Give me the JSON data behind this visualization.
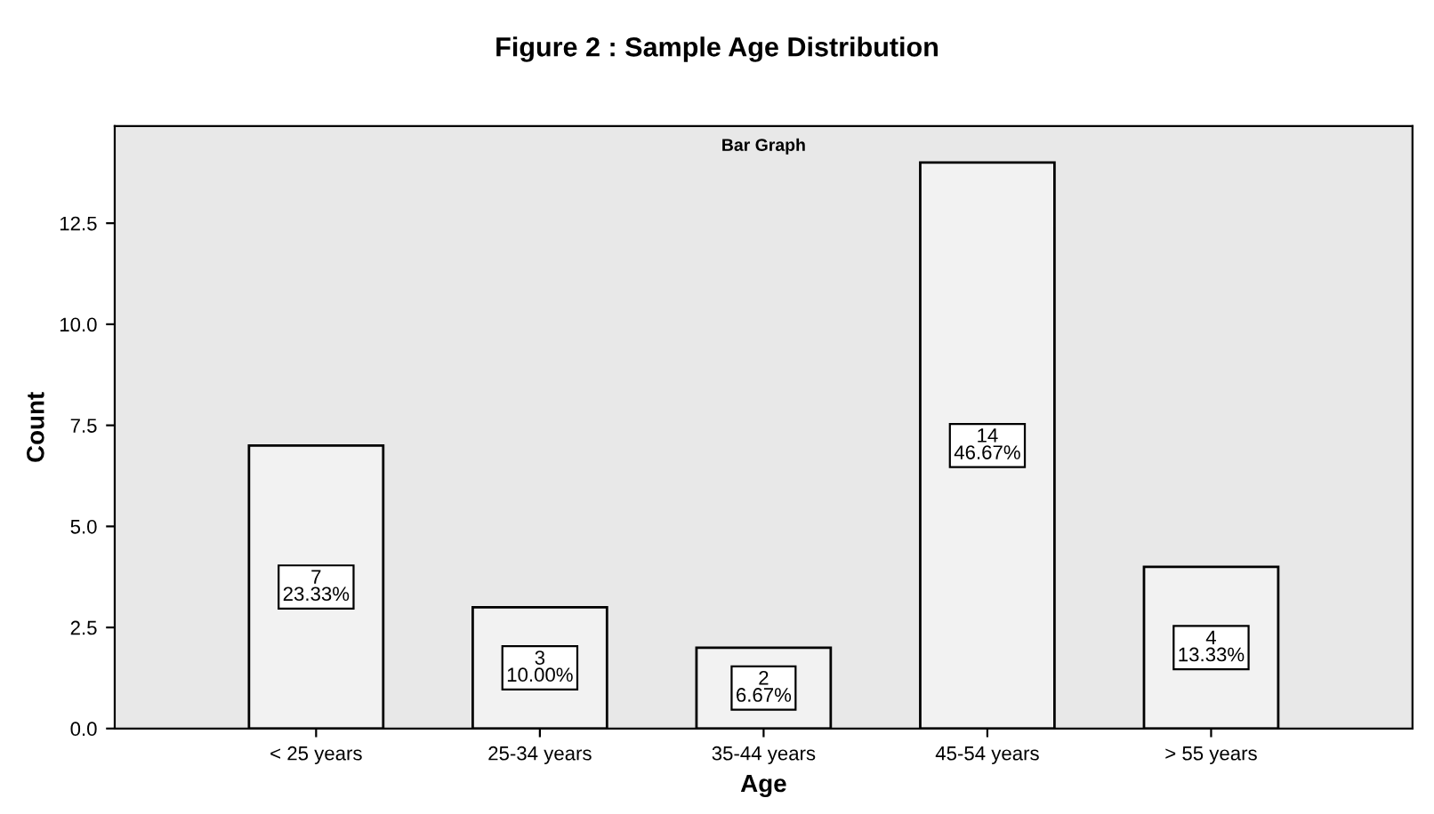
{
  "chart_data": {
    "type": "bar",
    "title": "Figure 2 : Sample Age Distribution",
    "subtitle": "Bar Graph",
    "xlabel": "Age",
    "ylabel": "Count",
    "categories": [
      "< 25 years",
      "25-34 years",
      "35-44 years",
      "45-54 years",
      "> 55 years"
    ],
    "values": [
      7,
      3,
      2,
      14,
      4
    ],
    "value_labels": [
      "7\n23.33%",
      "3\n10.00%",
      "2\n6.67%",
      "14\n46.67%",
      "4\n13.33%"
    ],
    "color": "#f2f2f2",
    "ylim": [
      0,
      14.9
    ],
    "yticks": [
      {
        "value": 0,
        "label": "0.0"
      },
      {
        "value": 2.5,
        "label": "2.5"
      },
      {
        "value": 5,
        "label": "5.0"
      },
      {
        "value": 7.5,
        "label": "7.5"
      },
      {
        "value": 10,
        "label": "10.0"
      },
      {
        "value": 12.5,
        "label": "12.5"
      }
    ],
    "grid": false
  }
}
